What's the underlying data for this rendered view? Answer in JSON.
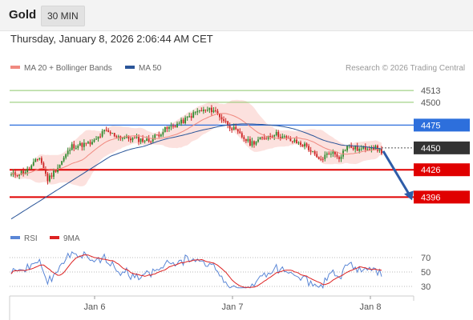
{
  "header": {
    "asset": "Gold",
    "timeframe": "30 MIN"
  },
  "datetime": "Thursday, January 8, 2026 2:06:44 AM CET",
  "legend": {
    "ma20_bb": "MA 20 + Bollinger Bands",
    "ma50": "MA 50",
    "credit": "Research © 2026 Trading Central"
  },
  "rsi_legend": {
    "rsi": "RSI",
    "ma9": "9MA"
  },
  "colors": {
    "ma20": "#f08a80",
    "ma50": "#2a5599",
    "bb_fill": "#fbdcd8",
    "up": "#2d8a2d",
    "down": "#cc2222",
    "blue_line": "#2d6fdc",
    "red_line": "#e00000",
    "green_line": "#8cc66a",
    "current": "#333333",
    "rsi": "#5a86d6",
    "rsi_ma": "#dd2222"
  },
  "chart_data": {
    "type": "line",
    "title": "Gold 30 MIN",
    "x_axis": {
      "tick_labels": [
        "Jan 6",
        "Jan 7",
        "Jan 8"
      ]
    },
    "price_axis_range": [
      4370,
      4528
    ],
    "levels": [
      {
        "label": "4513",
        "value": 4513,
        "style": "thin-green"
      },
      {
        "label": "4500",
        "value": 4500,
        "style": "thin-green"
      },
      {
        "label": "4475",
        "value": 4475,
        "style": "blue-tag"
      },
      {
        "label": "4450",
        "value": 4450,
        "style": "current-price"
      },
      {
        "label": "4426",
        "value": 4426,
        "style": "red-tag"
      },
      {
        "label": "4396",
        "value": 4396,
        "style": "red-tag"
      }
    ],
    "forecast_arrow": {
      "from": 4450,
      "to": 4396
    },
    "rsi": {
      "levels": [
        "70",
        "50",
        "30"
      ],
      "range": [
        20,
        80
      ]
    }
  }
}
